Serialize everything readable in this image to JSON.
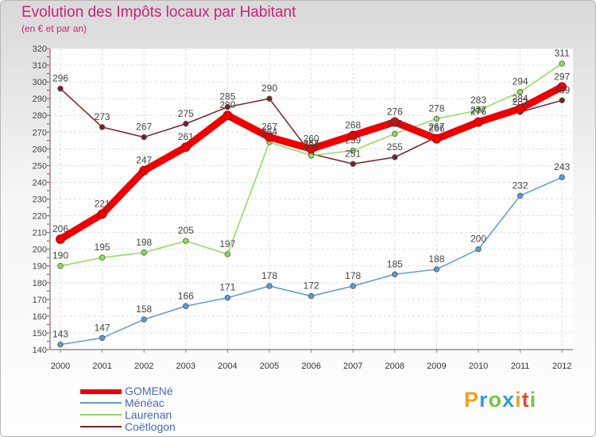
{
  "header": {
    "title": "Evolution des Impôts locaux par Habitant",
    "subtitle": "(en € et par an)"
  },
  "logo": {
    "letters": [
      "P",
      "r",
      "o",
      "x",
      "i",
      "t",
      "i"
    ],
    "colors": [
      "#f0a020",
      "#2f9fd8",
      "#7cc242",
      "#2f9fd8",
      "#f0a020",
      "#e24a2c",
      "#7cc242"
    ]
  },
  "chart_data": {
    "type": "line",
    "title": "Evolution des Impôts locaux par Habitant",
    "subtitle": "(en € et par an)",
    "xlabel": "",
    "ylabel": "",
    "categories": [
      "2000",
      "2001",
      "2002",
      "2003",
      "2004",
      "2005",
      "2006",
      "2007",
      "2008",
      "2009",
      "2010",
      "2011",
      "2012"
    ],
    "ylim": [
      140,
      320
    ],
    "yticks": [
      140,
      150,
      160,
      170,
      180,
      190,
      200,
      210,
      220,
      230,
      240,
      250,
      260,
      270,
      280,
      290,
      300,
      310,
      320
    ],
    "grid": true,
    "legend_position": "bottom-left",
    "series": [
      {
        "name": "Coëtlogon",
        "color": "#7a1f2b",
        "values": [
          296,
          273,
          267,
          275,
          285,
          290,
          257,
          251,
          255,
          267,
          277,
          282,
          289
        ]
      },
      {
        "name": "Laurenan",
        "color": "#8edc5a",
        "values": [
          190,
          195,
          198,
          205,
          197,
          264,
          256,
          259,
          269,
          278,
          283,
          294,
          311
        ]
      },
      {
        "name": "Ménéac",
        "color": "#5b9bd5",
        "values": [
          143,
          147,
          158,
          166,
          171,
          178,
          172,
          178,
          185,
          188,
          200,
          232,
          243
        ]
      },
      {
        "name": "GOMENé",
        "color": "#ee0000",
        "values": [
          206,
          221,
          247,
          261,
          280,
          267,
          260,
          268,
          276,
          266,
          276,
          284,
          297
        ]
      }
    ]
  },
  "legend": {
    "items": [
      {
        "label": "GOMENé",
        "color": "#ee0000"
      },
      {
        "label": "Ménéac",
        "color": "#5b9bd5"
      },
      {
        "label": "Laurenan",
        "color": "#8edc5a"
      },
      {
        "label": "Coëtlogon",
        "color": "#7a1f2b"
      }
    ]
  }
}
